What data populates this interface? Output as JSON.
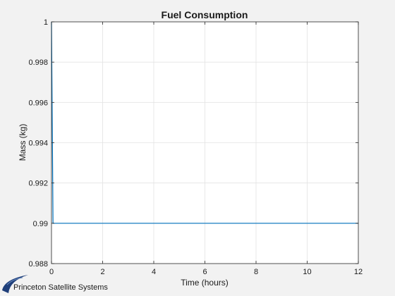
{
  "chart_data": {
    "type": "line",
    "title": "Fuel Consumption",
    "xlabel": "Time (hours)",
    "ylabel": "Mass (kg)",
    "xlim": [
      0,
      12
    ],
    "ylim": [
      0.988,
      1
    ],
    "xticks": [
      0,
      2,
      4,
      6,
      8,
      10,
      12
    ],
    "yticks": [
      0.988,
      0.99,
      0.992,
      0.994,
      0.996,
      0.998,
      1
    ],
    "xtick_labels": [
      "0",
      "2",
      "4",
      "6",
      "8",
      "10",
      "12"
    ],
    "ytick_labels": [
      "0.988",
      "0.99",
      "0.992",
      "0.994",
      "0.996",
      "0.998",
      "1"
    ],
    "grid": true,
    "series": [
      {
        "color": "#0072bd",
        "x": [
          0,
          0.03,
          0.06,
          12
        ],
        "y": [
          1.0,
          0.995,
          0.99,
          0.99
        ]
      }
    ]
  },
  "branding": {
    "text": "Princeton Satellite Systems",
    "logo_icon": "swoosh-logo-icon",
    "logo_color": "#1f3f7a"
  }
}
